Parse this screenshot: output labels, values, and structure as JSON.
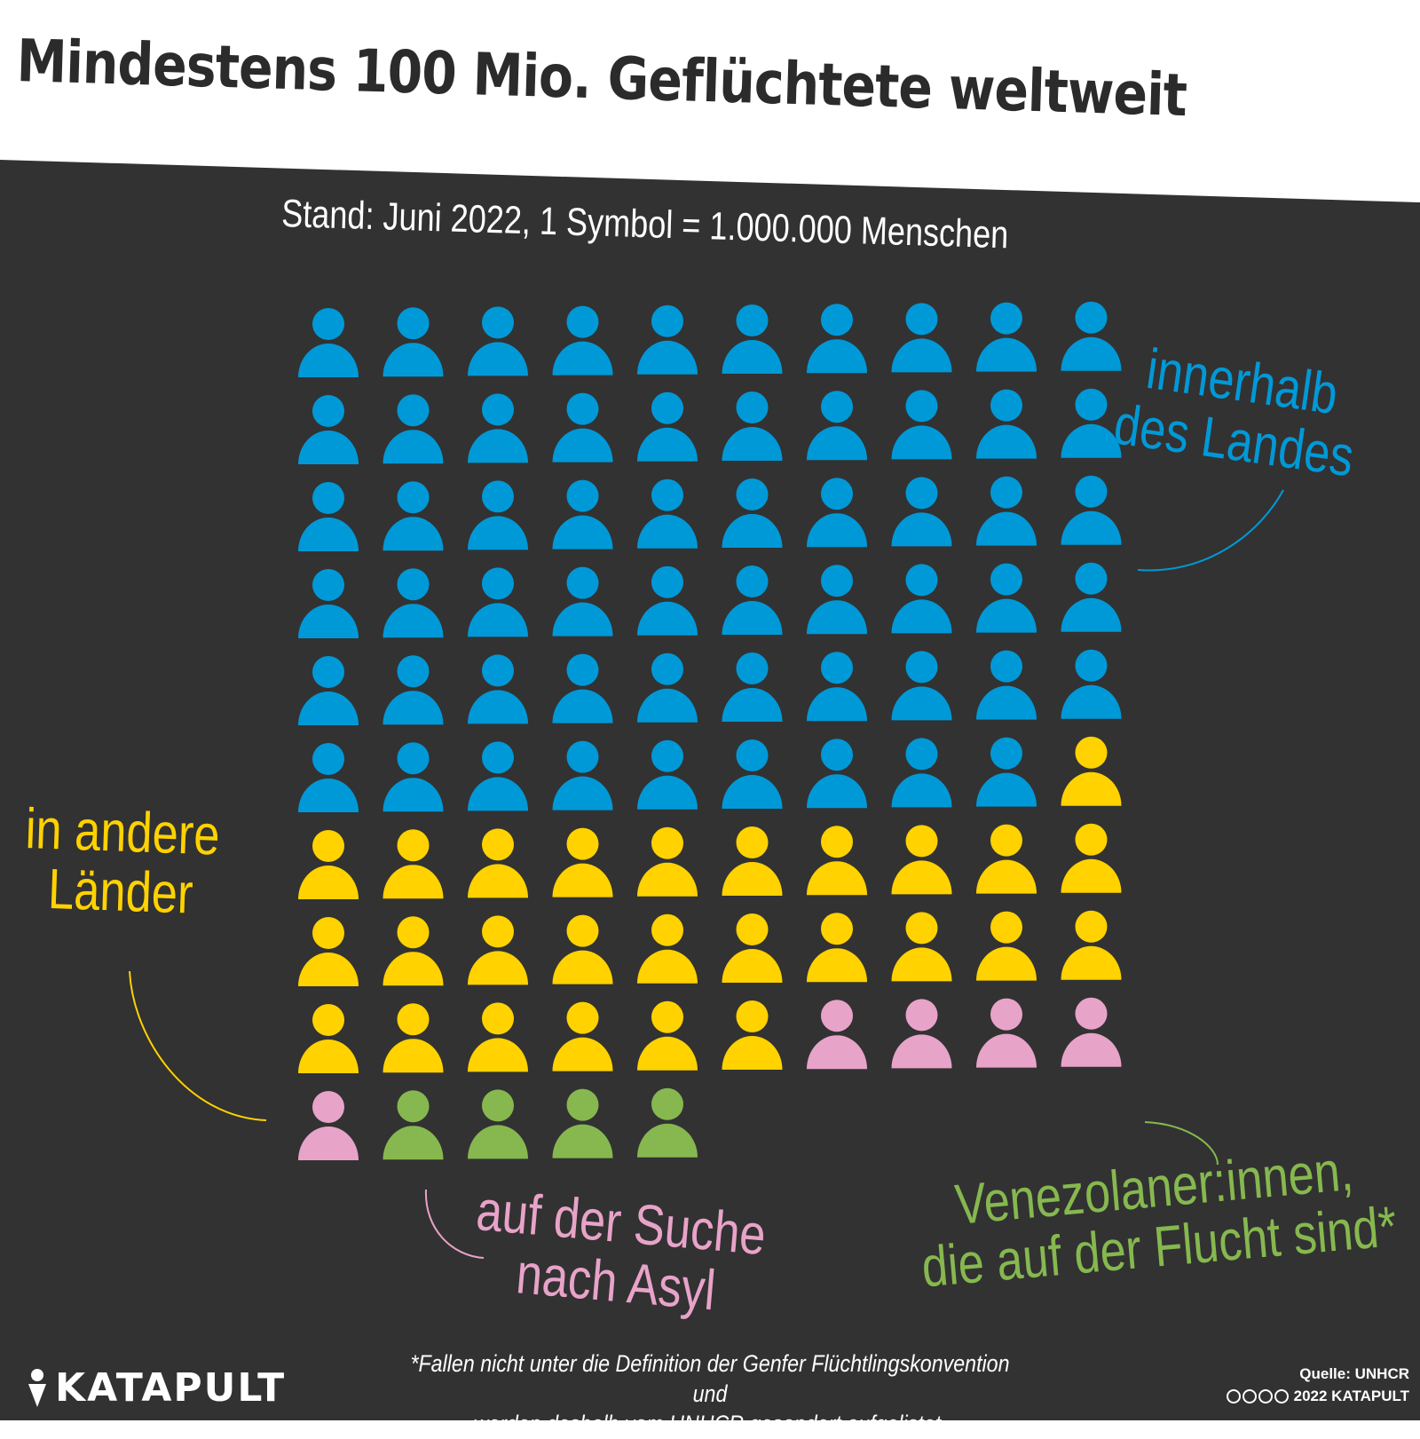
{
  "header": {
    "title": "Mindestens 100 Mio. Geflüchtete weltweit",
    "subtitle": "Stand: Juni 2022, 1 Symbol = 1.000.000 Menschen"
  },
  "chart_data": {
    "type": "waffle",
    "unit": "1 Symbol = 1.000.000 Menschen",
    "grid": {
      "columns": 10,
      "rows": 10
    },
    "series": [
      {
        "name": "innerhalb des Landes",
        "values": [
          59
        ],
        "color": "#0099d8"
      },
      {
        "name": "in andere Länder",
        "values": [
          27
        ],
        "color": "#ffd200"
      },
      {
        "name": "auf der Suche nach Asyl",
        "values": [
          5
        ],
        "color": "#e8a3c9"
      },
      {
        "name": "Venezolaner:innen, die auf der Flucht sind*",
        "values": [
          4
        ],
        "color": "#86b84f"
      }
    ]
  },
  "labels": {
    "innen": [
      "innerhalb",
      "des Landes"
    ],
    "ausland": [
      "in andere",
      "Länder"
    ],
    "asyl": [
      "auf der Suche",
      "nach Asyl"
    ],
    "venez": [
      "Venezolaner:innen,",
      "die auf der Flucht sind*"
    ]
  },
  "footnote": [
    "*Fallen nicht unter die Definition der Genfer Flüchtlingskonvention und",
    "werden deshalb vom UNHCR gesondert aufgelistet."
  ],
  "footer": {
    "brand": "KATAPULT",
    "source": "Quelle: UNHCR",
    "copyright": "2022 KATAPULT",
    "icons": [
      "cc-icon",
      "by-icon",
      "nc-icon",
      "nd-icon"
    ]
  }
}
